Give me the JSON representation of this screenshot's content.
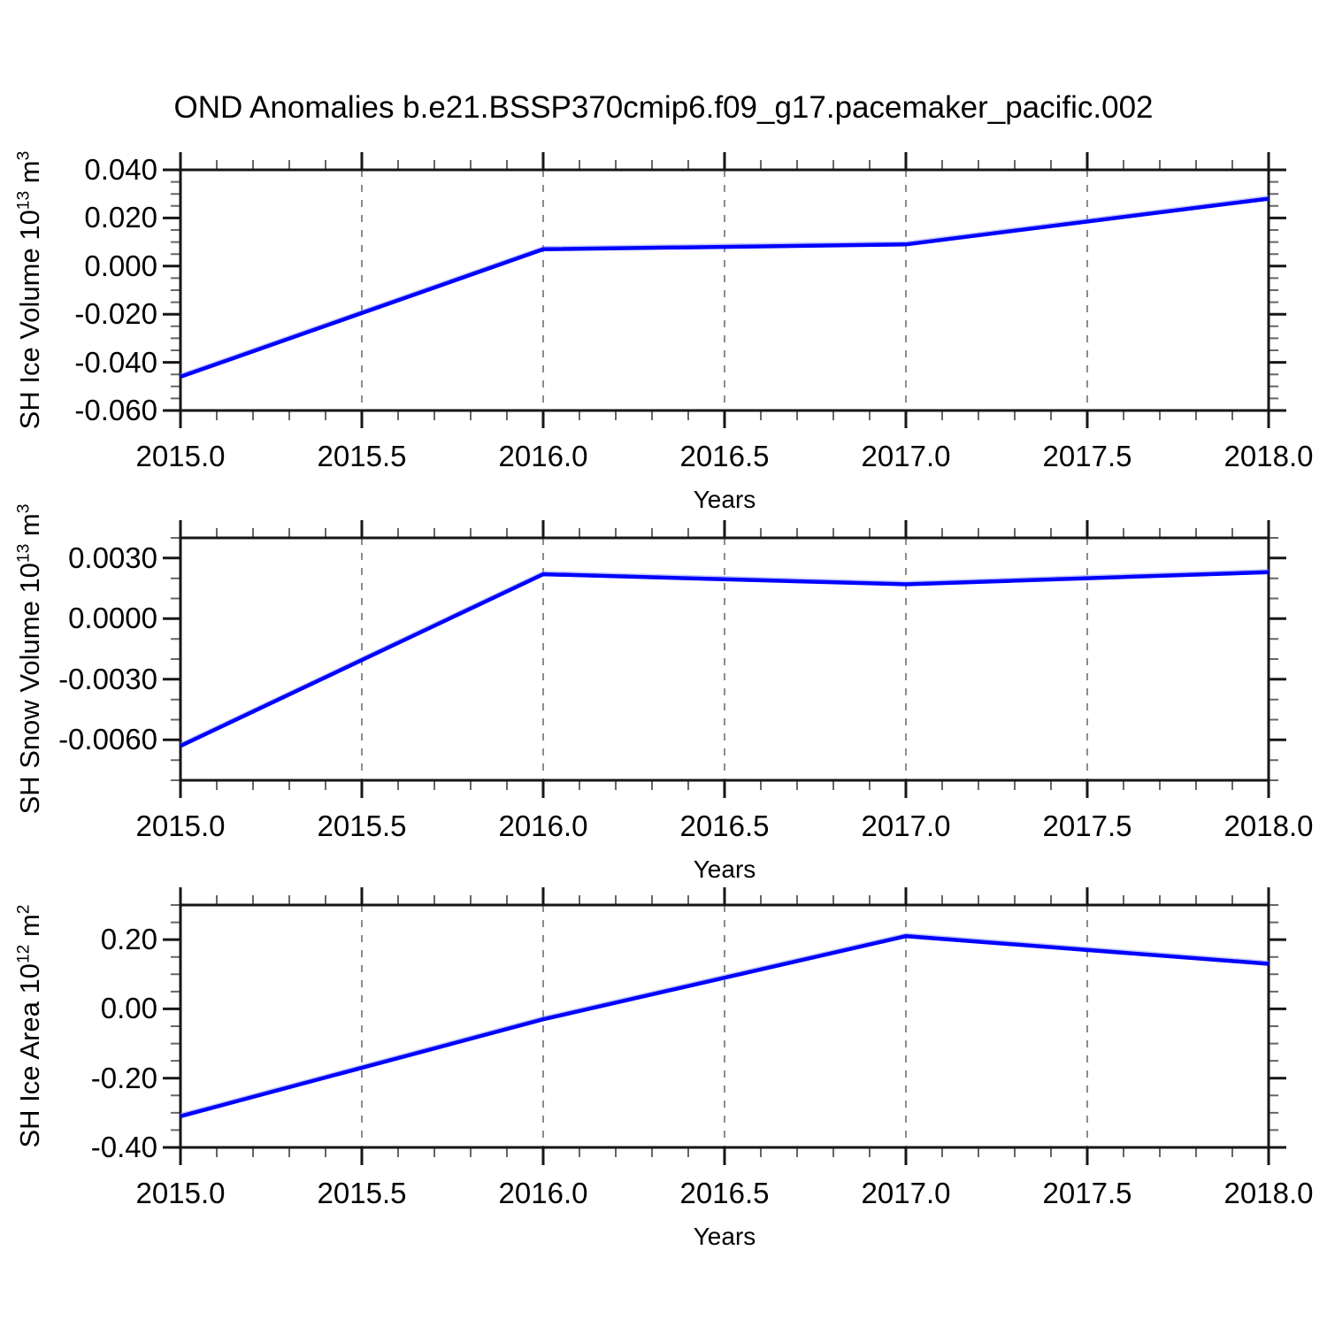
{
  "title": "OND Anomalies b.e21.BSSP370cmip6.f09_g17.pacemaker_pacific.002",
  "colors": {
    "line": "#0101ff",
    "line_halo": "#8f9bff",
    "grid": "#8c8c8c",
    "axis": "#161616",
    "minor_tick": "#666666"
  },
  "chart_data": [
    {
      "type": "line",
      "xlabel": "Years",
      "ylabel_parts": [
        {
          "t": "SH Ice Volume 10"
        },
        {
          "t": "13",
          "sup": true
        },
        {
          "t": " m"
        },
        {
          "t": "3",
          "sup": true
        }
      ],
      "x": [
        2015,
        2016,
        2017,
        2018
      ],
      "values": [
        -0.046,
        0.007,
        0.009,
        0.028
      ],
      "xlim": [
        2015,
        2018
      ],
      "ylim": [
        -0.06,
        0.04
      ],
      "xticks": {
        "values": [
          2015.0,
          2015.5,
          2016.0,
          2016.5,
          2017.0,
          2017.5,
          2018.0
        ],
        "labels": [
          "2015.0",
          "2015.5",
          "2016.0",
          "2016.5",
          "2017.0",
          "2017.5",
          "2018.0"
        ],
        "minor_step": 0.1
      },
      "yticks": {
        "values": [
          0.04,
          0.02,
          0.0,
          -0.02,
          -0.04,
          -0.06
        ],
        "labels": [
          "0.040",
          "0.020",
          "0.000",
          "-0.020",
          "-0.040",
          "-0.060"
        ],
        "minor_step": 0.005
      },
      "grid_x": [
        2015.5,
        2016.0,
        2016.5,
        2017.0,
        2017.5
      ],
      "grid_on": true,
      "legend": "none",
      "line_color": "#0101ff"
    },
    {
      "type": "line",
      "xlabel": "Years",
      "ylabel_parts": [
        {
          "t": "SH Snow Volume 10"
        },
        {
          "t": "13",
          "sup": true
        },
        {
          "t": " m"
        },
        {
          "t": "3",
          "sup": true
        }
      ],
      "x": [
        2015,
        2016,
        2017,
        2018
      ],
      "values": [
        -0.0063,
        0.0022,
        0.0017,
        0.0023
      ],
      "xlim": [
        2015,
        2018
      ],
      "ylim": [
        -0.008,
        0.004
      ],
      "xticks": {
        "values": [
          2015.0,
          2015.5,
          2016.0,
          2016.5,
          2017.0,
          2017.5,
          2018.0
        ],
        "labels": [
          "2015.0",
          "2015.5",
          "2016.0",
          "2016.5",
          "2017.0",
          "2017.5",
          "2018.0"
        ],
        "minor_step": 0.1
      },
      "yticks": {
        "values": [
          0.003,
          0.0,
          -0.003,
          -0.006
        ],
        "labels": [
          "0.0030",
          "0.0000",
          "-0.0030",
          "-0.0060"
        ],
        "minor_step": 0.001
      },
      "grid_x": [
        2015.5,
        2016.0,
        2016.5,
        2017.0,
        2017.5
      ],
      "grid_on": true,
      "legend": "none",
      "line_color": "#0101ff"
    },
    {
      "type": "line",
      "xlabel": "Years",
      "ylabel_parts": [
        {
          "t": "SH Ice Area 10"
        },
        {
          "t": "12",
          "sup": true
        },
        {
          "t": " m"
        },
        {
          "t": "2",
          "sup": true
        }
      ],
      "x": [
        2015,
        2016,
        2017,
        2018
      ],
      "values": [
        -0.31,
        -0.03,
        0.21,
        0.13
      ],
      "xlim": [
        2015,
        2018
      ],
      "ylim": [
        -0.4,
        0.3
      ],
      "xticks": {
        "values": [
          2015.0,
          2015.5,
          2016.0,
          2016.5,
          2017.0,
          2017.5,
          2018.0
        ],
        "labels": [
          "2015.0",
          "2015.5",
          "2016.0",
          "2016.5",
          "2017.0",
          "2017.5",
          "2018.0"
        ],
        "minor_step": 0.1
      },
      "yticks": {
        "values": [
          0.2,
          0.0,
          -0.2,
          -0.4
        ],
        "labels": [
          "0.20",
          "0.00",
          "-0.20",
          "-0.40"
        ],
        "minor_step": 0.05
      },
      "grid_x": [
        2015.5,
        2016.0,
        2016.5,
        2017.0,
        2017.5
      ],
      "grid_on": true,
      "legend": "none",
      "line_color": "#0101ff"
    }
  ]
}
